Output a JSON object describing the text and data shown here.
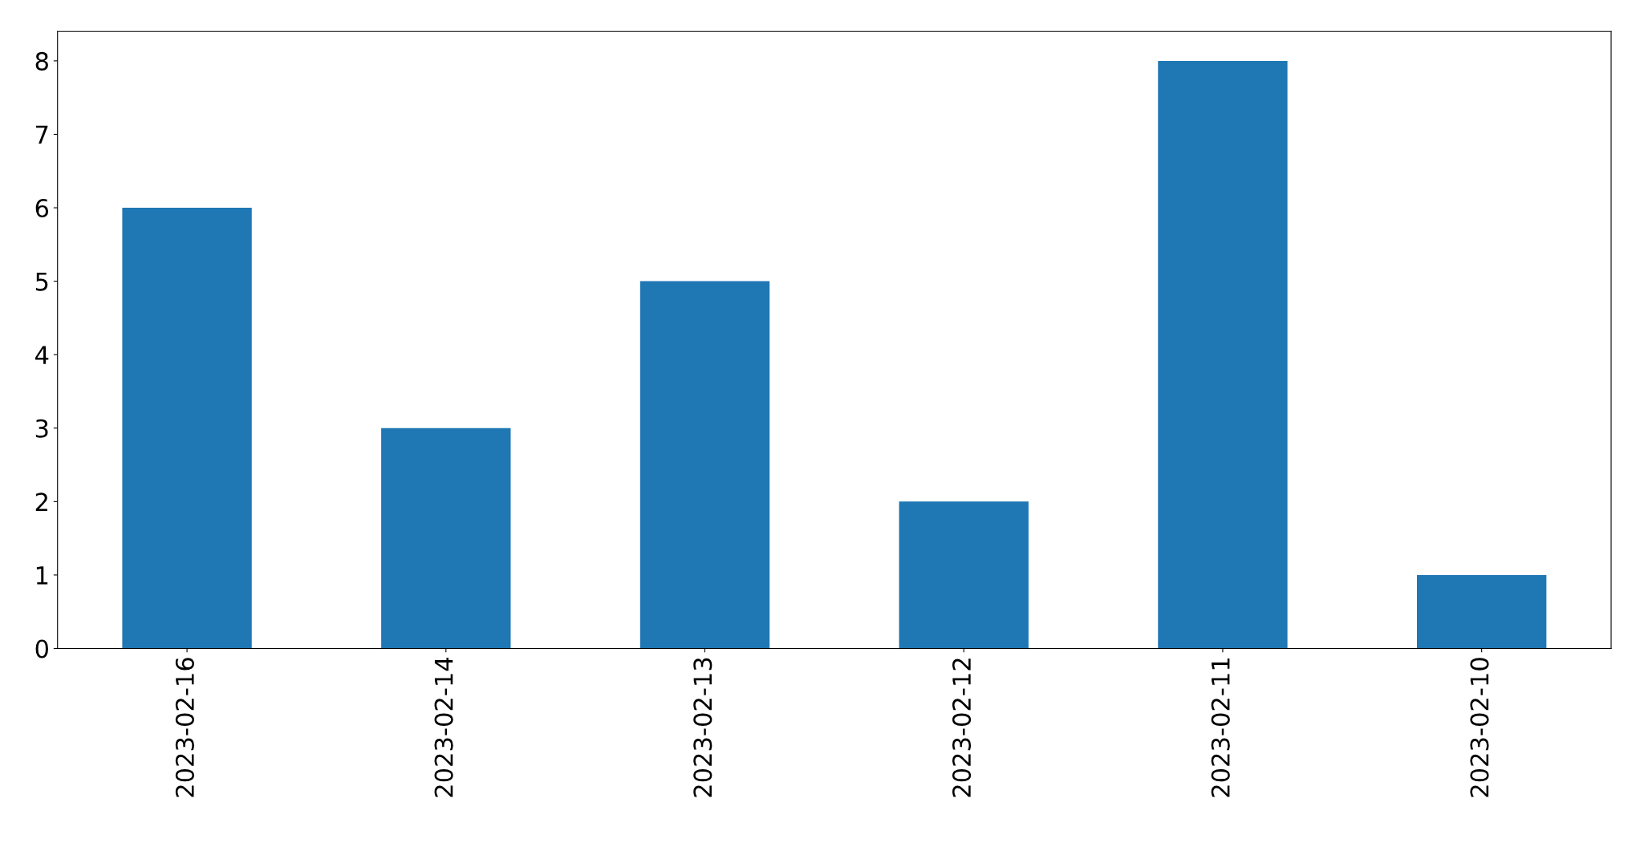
{
  "chart_data": {
    "type": "bar",
    "categories": [
      "2023-02-16",
      "2023-02-14",
      "2023-02-13",
      "2023-02-12",
      "2023-02-11",
      "2023-02-10"
    ],
    "values": [
      6,
      3,
      5,
      2,
      8,
      1
    ],
    "color": "#1f77b4",
    "ylim": [
      0,
      8.4
    ],
    "yticks": [
      0,
      1,
      2,
      3,
      4,
      5,
      6,
      7,
      8
    ],
    "grid": false,
    "legend": false
  }
}
